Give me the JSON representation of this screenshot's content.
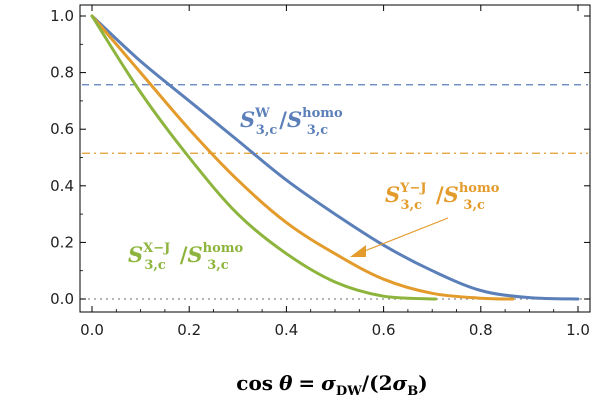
{
  "chart_data": {
    "type": "line",
    "xlabel": "cos θ = σDW/(2σB)",
    "xlim": [
      0.0,
      1.0
    ],
    "ylim": [
      0.0,
      1.0
    ],
    "x_ticks": [
      "0.0",
      "0.2",
      "0.4",
      "0.6",
      "0.8",
      "1.0"
    ],
    "y_ticks": [
      "0.0",
      "0.2",
      "0.4",
      "0.6",
      "0.8",
      "1.0"
    ],
    "grid": false,
    "series": [
      {
        "name": "S^W_{3,c} / S^homo_{3,c}",
        "color": "#5b7fb9",
        "x": [
          0,
          0.1,
          0.2,
          0.3,
          0.4,
          0.5,
          0.6,
          0.7,
          0.8,
          0.9,
          1.0
        ],
        "values": [
          1.0,
          0.84,
          0.7,
          0.56,
          0.42,
          0.3,
          0.19,
          0.1,
          0.03,
          0.005,
          0.0
        ]
      },
      {
        "name": "S^{Y-J}_{3,c} / S^homo_{3,c}",
        "color": "#e39b2b",
        "x": [
          0,
          0.1,
          0.2,
          0.3,
          0.4,
          0.5,
          0.6,
          0.7,
          0.8,
          0.866
        ],
        "values": [
          1.0,
          0.8,
          0.6,
          0.42,
          0.27,
          0.16,
          0.07,
          0.02,
          0.003,
          0.0
        ]
      },
      {
        "name": "S^{X-J}_{3,c} / S^homo_{3,c}",
        "color": "#8db53d",
        "x": [
          0,
          0.1,
          0.2,
          0.3,
          0.4,
          0.5,
          0.6,
          0.707
        ],
        "values": [
          1.0,
          0.73,
          0.5,
          0.3,
          0.16,
          0.06,
          0.01,
          0.0
        ]
      }
    ],
    "reference_lines": [
      {
        "y": 0.757,
        "style": "dashed",
        "color": "#5b7fb9"
      },
      {
        "y": 0.515,
        "style": "dash-dot",
        "color": "#e39b2b"
      },
      {
        "y": 0.0,
        "style": "dotted",
        "color": "#8c8c8c"
      }
    ],
    "annotations": [
      {
        "series": 0,
        "base": "S",
        "sup": "W",
        "sub": "3,c",
        "den_base": "S",
        "den_sup": "homo",
        "den_sub": "3,c"
      },
      {
        "series": 1,
        "base": "S",
        "sup": "Y−J",
        "sub": "3,c",
        "den_base": "S",
        "den_sup": "homo",
        "den_sub": "3,c"
      },
      {
        "series": 2,
        "base": "S",
        "sup": "X−J",
        "sub": "3,c",
        "den_base": "S",
        "den_sup": "homo",
        "den_sub": "3,c"
      }
    ]
  }
}
